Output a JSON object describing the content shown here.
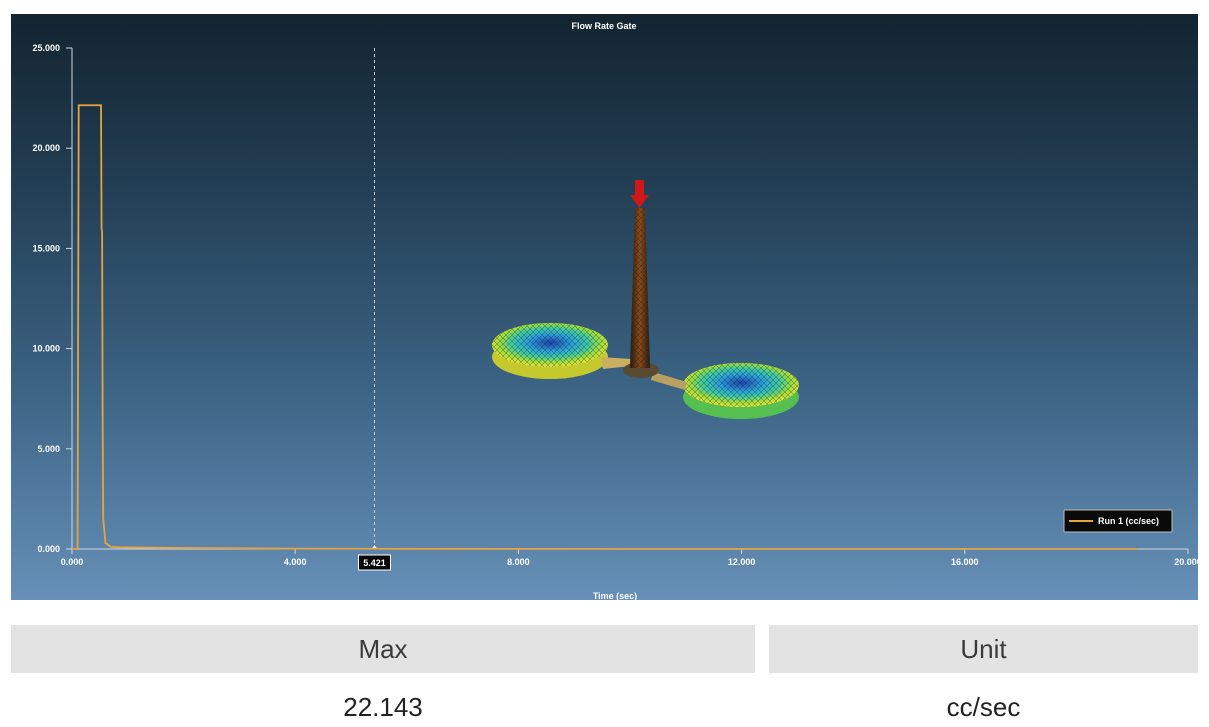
{
  "chart_data": {
    "type": "line",
    "title": "Flow Rate Gate",
    "xlabel": "Time (sec)",
    "ylabel": "",
    "xlim": [
      0,
      20
    ],
    "ylim": [
      0,
      25
    ],
    "x_ticks": [
      "0.000",
      "4.000",
      "8.000",
      "12.000",
      "16.000",
      "20.000"
    ],
    "y_ticks": [
      "0.000",
      "5.000",
      "10.000",
      "15.000",
      "20.000",
      "25.000"
    ],
    "cursor": {
      "x": 5.421,
      "label": "5.421"
    },
    "legend_position": "bottom-right",
    "series": [
      {
        "name": "Run 1 (cc/sec)",
        "color": "#e8a33d",
        "x": [
          0.0,
          0.1,
          0.12,
          0.52,
          0.53,
          0.54,
          0.55,
          0.56,
          0.6,
          0.7,
          0.9,
          2.0,
          4.0,
          6.0,
          10.0,
          19.1
        ],
        "y": [
          0.0,
          0.0,
          22.143,
          22.143,
          16.0,
          15.8,
          6.0,
          1.5,
          0.3,
          0.1,
          0.08,
          0.05,
          0.02,
          0.01,
          0.0,
          0.0
        ]
      }
    ],
    "grid": false
  },
  "summary": {
    "max_header": "Max",
    "unit_header": "Unit",
    "max_value": "22.143",
    "unit_value": "cc/sec"
  },
  "model_icon": "casting-mesh-model"
}
